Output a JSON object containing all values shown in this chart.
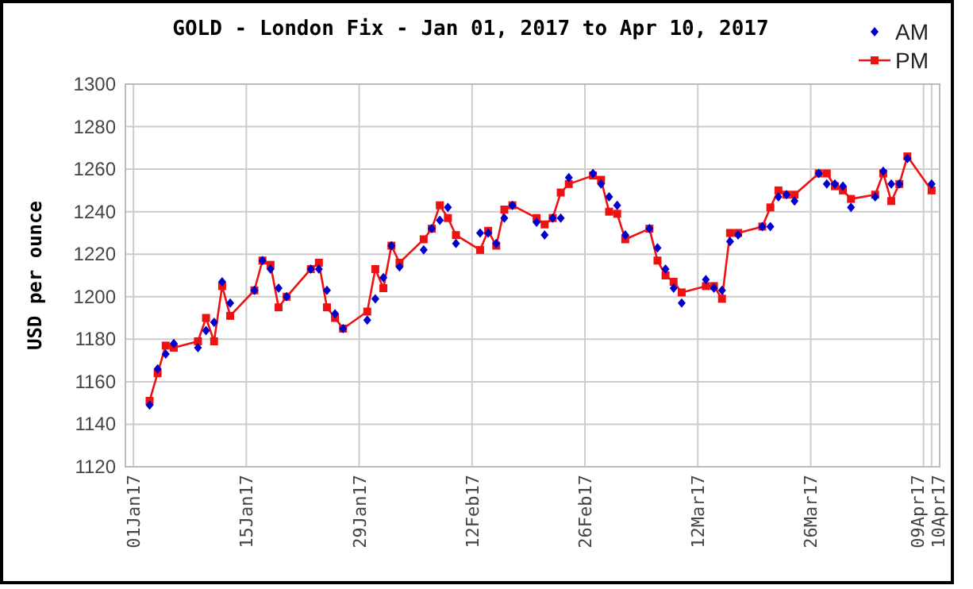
{
  "chart_data": {
    "type": "line",
    "title": "GOLD - London Fix - Jan 01, 2017 to Apr 10, 2017",
    "ylabel": "USD per ounce",
    "x": [
      "2017-01-03",
      "2017-01-04",
      "2017-01-05",
      "2017-01-06",
      "2017-01-09",
      "2017-01-10",
      "2017-01-11",
      "2017-01-12",
      "2017-01-13",
      "2017-01-16",
      "2017-01-17",
      "2017-01-18",
      "2017-01-19",
      "2017-01-20",
      "2017-01-23",
      "2017-01-24",
      "2017-01-25",
      "2017-01-26",
      "2017-01-27",
      "2017-01-30",
      "2017-01-31",
      "2017-02-01",
      "2017-02-02",
      "2017-02-03",
      "2017-02-06",
      "2017-02-07",
      "2017-02-08",
      "2017-02-09",
      "2017-02-10",
      "2017-02-13",
      "2017-02-14",
      "2017-02-15",
      "2017-02-16",
      "2017-02-17",
      "2017-02-20",
      "2017-02-21",
      "2017-02-22",
      "2017-02-23",
      "2017-02-24",
      "2017-02-27",
      "2017-02-28",
      "2017-03-01",
      "2017-03-02",
      "2017-03-03",
      "2017-03-06",
      "2017-03-07",
      "2017-03-08",
      "2017-03-09",
      "2017-03-10",
      "2017-03-13",
      "2017-03-14",
      "2017-03-15",
      "2017-03-16",
      "2017-03-17",
      "2017-03-20",
      "2017-03-21",
      "2017-03-22",
      "2017-03-23",
      "2017-03-24",
      "2017-03-27",
      "2017-03-28",
      "2017-03-29",
      "2017-03-30",
      "2017-03-31",
      "2017-04-03",
      "2017-04-04",
      "2017-04-05",
      "2017-04-06",
      "2017-04-07",
      "2017-04-10"
    ],
    "series": [
      {
        "name": "AM",
        "type": "scatter",
        "marker": "diamond",
        "color": "#0000cc",
        "values": [
          1149,
          1166,
          1173,
          1178,
          1176,
          1184,
          1188,
          1207,
          1197,
          1203,
          1217,
          1213,
          1204,
          1200,
          1213,
          1213,
          1203,
          1192,
          1185,
          1189,
          1199,
          1209,
          1224,
          1214,
          1222,
          1232,
          1236,
          1242,
          1225,
          1230,
          1230,
          1225,
          1237,
          1243,
          1235,
          1229,
          1237,
          1237,
          1256,
          1258,
          1253,
          1247,
          1243,
          1229,
          1232,
          1223,
          1213,
          1204,
          1197,
          1208,
          1204,
          1203,
          1226,
          1229,
          1233,
          1233,
          1247,
          1248,
          1245,
          1258,
          1253,
          1253,
          1252,
          1242,
          1247,
          1259,
          1253,
          1253,
          1265,
          1253
        ]
      },
      {
        "name": "PM",
        "marker": "square",
        "color": "#ee1111",
        "values": [
          1151,
          1164,
          1177,
          1176,
          1179,
          1190,
          1179,
          1205,
          1191,
          1203,
          1217,
          1215,
          1195,
          1200,
          1213,
          1216,
          1195,
          1190,
          1185,
          1193,
          1213,
          1204,
          1224,
          1216,
          1227,
          1232,
          1243,
          1237,
          1229,
          1222,
          1231,
          1224,
          1241,
          1243,
          1237,
          1234,
          1237,
          1249,
          1253,
          1257,
          1255,
          1240,
          1239,
          1227,
          1232,
          1217,
          1210,
          1207,
          1202,
          1205,
          1205,
          1199,
          1230,
          1230,
          1233,
          1242,
          1250,
          1248,
          1248,
          1258,
          1258,
          1252,
          1250,
          1246,
          1248,
          1258,
          1245,
          1253,
          1266,
          1250
        ]
      }
    ],
    "xlim": [
      "2016-12-31",
      "2017-04-11"
    ],
    "xticks": [
      {
        "value": "2017-01-01",
        "label": "01Jan17"
      },
      {
        "value": "2017-01-15",
        "label": "15Jan17"
      },
      {
        "value": "2017-01-29",
        "label": "29Jan17"
      },
      {
        "value": "2017-02-12",
        "label": "12Feb17"
      },
      {
        "value": "2017-02-26",
        "label": "26Feb17"
      },
      {
        "value": "2017-03-12",
        "label": "12Mar17"
      },
      {
        "value": "2017-03-26",
        "label": "26Mar17"
      },
      {
        "value": "2017-04-09",
        "label": "09Apr17"
      },
      {
        "value": "2017-04-10",
        "label": "10Apr17"
      }
    ],
    "ylim": [
      1120,
      1300
    ],
    "yticks": [
      1120,
      1140,
      1160,
      1180,
      1200,
      1220,
      1240,
      1260,
      1280,
      1300
    ],
    "grid": true,
    "legend": "top right"
  }
}
